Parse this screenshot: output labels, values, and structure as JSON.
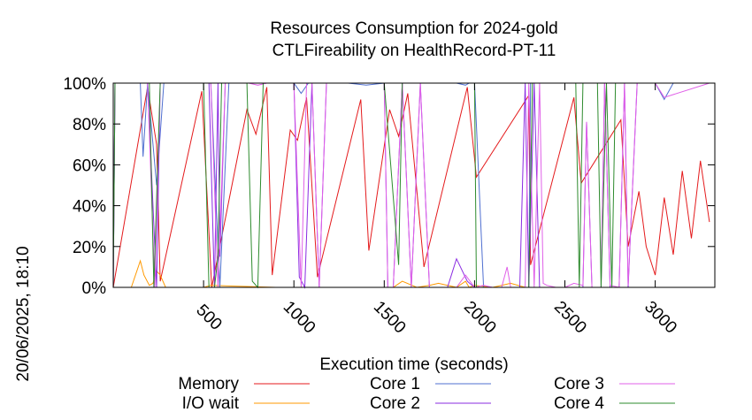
{
  "chart_data": {
    "type": "line",
    "title": "Resources Consumption for 2024-gold",
    "subtitle": "CTLFireability on HealthRecord-PT-11",
    "xlabel": "Execution time (seconds)",
    "ylabel": "",
    "side_label": "20/06/2025, 18:10",
    "xlim": [
      0,
      3330
    ],
    "ylim": [
      0,
      100
    ],
    "x_ticks": [
      {
        "value": 500,
        "label": "500"
      },
      {
        "value": 1000,
        "label": "1000"
      },
      {
        "value": 1500,
        "label": "1500"
      },
      {
        "value": 2000,
        "label": "2000"
      },
      {
        "value": 2500,
        "label": "2500"
      },
      {
        "value": 3000,
        "label": "3000"
      }
    ],
    "y_ticks": [
      {
        "value": 0,
        "label": "0%"
      },
      {
        "value": 20,
        "label": "20%"
      },
      {
        "value": 40,
        "label": "40%"
      },
      {
        "value": 60,
        "label": "60%"
      },
      {
        "value": 80,
        "label": "80%"
      },
      {
        "value": 100,
        "label": "100%"
      }
    ],
    "legend_position": "bottom",
    "series": [
      {
        "name": "Memory",
        "color": "#e41a1c",
        "x": [
          0,
          190,
          240,
          260,
          490,
          545,
          740,
          790,
          850,
          880,
          980,
          1020,
          1070,
          1130,
          1370,
          1415,
          1530,
          1580,
          1630,
          1720,
          1960,
          2010,
          2300,
          2310,
          2550,
          2590,
          2810,
          2850,
          2910,
          2950,
          3000,
          3050,
          3100,
          3150,
          3200,
          3250,
          3300
        ],
        "y": [
          0,
          98,
          70,
          3,
          96,
          0,
          87,
          75,
          98,
          6,
          77,
          72,
          93,
          5,
          92,
          18,
          87,
          74,
          95,
          10,
          98,
          54,
          94,
          11,
          93,
          51,
          82,
          20,
          47,
          20,
          6,
          44,
          16,
          57,
          24,
          62,
          32
        ]
      },
      {
        "name": "I/O wait",
        "color": "#ff9900",
        "x": [
          0,
          100,
          150,
          170,
          200,
          220,
          240,
          260,
          290,
          320,
          420,
          490,
          500,
          540,
          900,
          1000,
          1200,
          1400,
          1550,
          1600,
          1680,
          1750,
          1800,
          1850,
          1900,
          1950,
          1970,
          2000,
          2100,
          2150,
          2200,
          2280,
          2350,
          2600,
          2800,
          3300
        ],
        "y": [
          0,
          0,
          13,
          6,
          1,
          2,
          8,
          6,
          0,
          0,
          0,
          0,
          0,
          1,
          0,
          0,
          0,
          0,
          0,
          3,
          0,
          1,
          2,
          1,
          0,
          3,
          0,
          1,
          0,
          1,
          2,
          0,
          0,
          0,
          0,
          0
        ]
      },
      {
        "name": "Core 1",
        "color": "#4f6fd0",
        "x": [
          0,
          10,
          60,
          150,
          165,
          190,
          240,
          280,
          320,
          380,
          500,
          540,
          590,
          640,
          690,
          740,
          800,
          850,
          1000,
          1040,
          1080,
          1120,
          1160,
          1200,
          1300,
          1400,
          1500,
          1540,
          1600,
          1700,
          1800,
          1900,
          1950,
          1970,
          2000,
          2050,
          2100,
          2200,
          2300,
          2310,
          2400,
          2500,
          2700,
          2800,
          3000,
          3050,
          3100,
          3300
        ],
        "y": [
          0,
          100,
          100,
          100,
          64,
          100,
          50,
          100,
          100,
          100,
          100,
          100,
          0,
          100,
          100,
          100,
          100,
          100,
          100,
          95,
          100,
          100,
          100,
          100,
          100,
          99,
          100,
          100,
          100,
          100,
          100,
          100,
          99,
          100,
          100,
          0,
          0,
          0,
          0,
          100,
          100,
          100,
          100,
          100,
          100,
          92,
          100,
          100
        ]
      },
      {
        "name": "Core 2",
        "color": "#8a2be2",
        "x": [
          0,
          10,
          100,
          140,
          160,
          190,
          240,
          260,
          300,
          340,
          380,
          470,
          500,
          530,
          560,
          580,
          590,
          620,
          650,
          700,
          750,
          800,
          850,
          1000,
          1030,
          1060,
          1100,
          1140,
          1180,
          1220,
          1400,
          1500,
          1520,
          1550,
          1600,
          1650,
          1700,
          1750,
          1800,
          1850,
          1900,
          1960,
          2000,
          2050,
          2100,
          2150,
          2200,
          2250,
          2280,
          2300,
          2330,
          2360,
          2400,
          2450,
          2500,
          2550,
          2600,
          2620,
          2650,
          2700,
          2720,
          2750,
          2800,
          2830,
          2850,
          2900,
          3300
        ],
        "y": [
          0,
          100,
          100,
          100,
          100,
          100,
          0,
          100,
          100,
          100,
          100,
          100,
          100,
          100,
          0,
          100,
          15,
          100,
          100,
          100,
          100,
          100,
          100,
          100,
          5,
          0,
          100,
          0,
          100,
          100,
          100,
          100,
          0,
          0,
          100,
          0,
          100,
          0,
          0,
          0,
          14,
          3,
          0,
          0,
          0,
          0,
          0,
          0,
          100,
          0,
          100,
          0,
          0,
          0,
          0,
          0,
          0,
          81,
          0,
          0,
          100,
          0,
          0,
          100,
          0,
          100,
          100
        ]
      },
      {
        "name": "Core 3",
        "color": "#e060e8",
        "x": [
          0,
          10,
          80,
          130,
          170,
          190,
          230,
          260,
          290,
          320,
          380,
          480,
          510,
          540,
          580,
          620,
          650,
          700,
          750,
          800,
          850,
          1000,
          1040,
          1070,
          1100,
          1140,
          1180,
          1220,
          1400,
          1500,
          1520,
          1550,
          1600,
          1650,
          1700,
          1750,
          1800,
          1850,
          1900,
          1950,
          2000,
          2050,
          2100,
          2150,
          2180,
          2200,
          2250,
          2280,
          2300,
          2330,
          2360,
          2380,
          2400,
          2450,
          2500,
          2550,
          2600,
          2620,
          2650,
          2700,
          2720,
          2750,
          2800,
          2830,
          2850,
          2900,
          3000,
          3050,
          3300
        ],
        "y": [
          0,
          100,
          100,
          100,
          100,
          100,
          0,
          100,
          100,
          100,
          100,
          100,
          100,
          100,
          0,
          100,
          100,
          100,
          100,
          99,
          100,
          100,
          0,
          100,
          100,
          0,
          100,
          100,
          100,
          100,
          0,
          0,
          100,
          0,
          100,
          0,
          0,
          0,
          0,
          6,
          0,
          1,
          0,
          0,
          10,
          0,
          0,
          0,
          100,
          0,
          100,
          2,
          1,
          0,
          0,
          2,
          1,
          81,
          0,
          0,
          100,
          1,
          0,
          100,
          1,
          100,
          100,
          93,
          100
        ]
      },
      {
        "name": "Core 4",
        "color": "#2e8b2e",
        "x": [
          0,
          10,
          200,
          225,
          260,
          320,
          380,
          480,
          500,
          530,
          560,
          580,
          600,
          640,
          680,
          700,
          740,
          770,
          800,
          830,
          860,
          900,
          940,
          1000,
          1100,
          1200,
          1350,
          1400,
          1410,
          1450,
          1500,
          1580,
          1600,
          1640,
          1700,
          1800,
          1900,
          1950,
          1970,
          2000,
          2010,
          2300,
          2320,
          2360,
          2400,
          2500,
          2560,
          2580,
          2600,
          2640,
          2680,
          2700,
          2730,
          2760,
          2780,
          2800,
          3300
        ],
        "y": [
          0,
          100,
          100,
          0,
          100,
          100,
          100,
          100,
          100,
          0,
          0,
          15,
          100,
          100,
          100,
          100,
          100,
          3,
          0,
          100,
          100,
          100,
          100,
          100,
          100,
          100,
          100,
          100,
          100,
          100,
          100,
          11,
          100,
          100,
          100,
          100,
          100,
          100,
          100,
          100,
          0,
          0,
          100,
          100,
          100,
          100,
          100,
          0,
          100,
          100,
          100,
          0,
          100,
          0,
          100,
          100,
          100
        ]
      }
    ]
  }
}
